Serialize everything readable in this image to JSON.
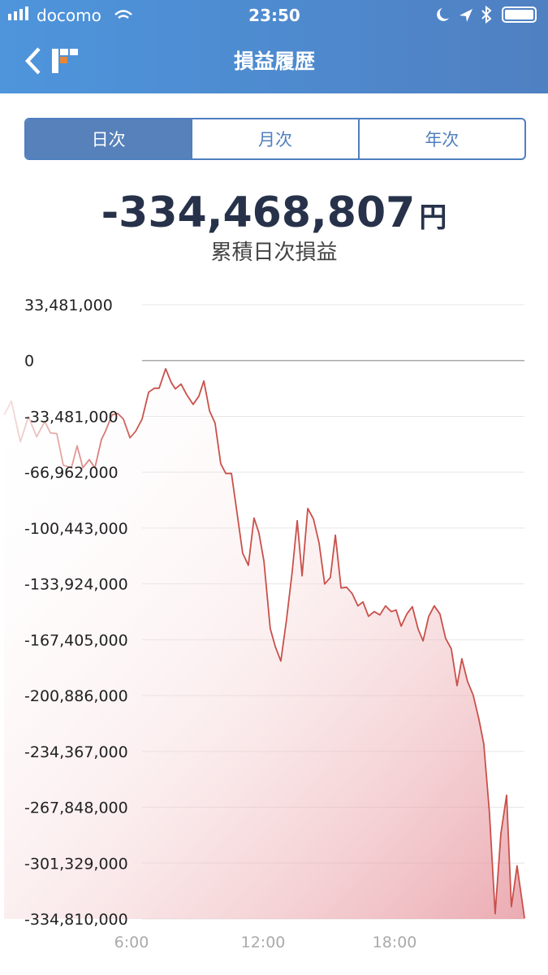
{
  "status_bar": {
    "carrier": "docomo",
    "time": "23:50"
  },
  "nav": {
    "title": "損益履歴"
  },
  "tabs": {
    "items": [
      "日次",
      "月次",
      "年次"
    ],
    "selected": 0
  },
  "summary": {
    "value": "-334,468,807",
    "unit": "円",
    "label": "累積日次損益"
  },
  "chart_data": {
    "type": "line",
    "x": [
      0.19,
      0.52,
      0.93,
      1.3,
      1.67,
      2.04,
      2.3,
      2.59,
      2.89,
      3.26,
      3.52,
      3.78,
      4.07,
      4.33,
      4.63,
      4.81,
      5.11,
      5.37,
      5.63,
      5.93,
      6.19,
      6.48,
      6.78,
      7.04,
      7.26,
      7.56,
      7.81,
      8,
      8.26,
      8.52,
      8.81,
      9.07,
      9.3,
      9.56,
      9.81,
      10.07,
      10.3,
      10.56,
      10.81,
      11.07,
      11.33,
      11.59,
      11.81,
      12.04,
      12.33,
      12.56,
      12.81,
      13.07,
      13.33,
      13.56,
      13.78,
      14.04,
      14.3,
      14.56,
      14.81,
      15.07,
      15.3,
      15.56,
      15.81,
      16.07,
      16.33,
      16.56,
      16.81,
      17.07,
      17.33,
      17.59,
      17.85,
      18.07,
      18.3,
      18.56,
      18.81,
      19.07,
      19.3,
      19.56,
      19.81,
      20.07,
      20.33,
      20.59,
      20.85,
      21.07,
      21.33,
      21.59,
      21.85,
      22.07,
      22.33,
      22.59,
      22.85,
      23.11,
      23.33,
      23.59,
      23.93
    ],
    "series": [
      {
        "color": "#c9504a",
        "values": [
          -32600000,
          -24400000,
          -48700000,
          -33600000,
          -45800000,
          -36500000,
          -43400000,
          -43800000,
          -62800000,
          -64300000,
          -51200000,
          -64300000,
          -59400000,
          -64300000,
          -47300000,
          -42400000,
          -32600000,
          -31700000,
          -35100000,
          -46300000,
          -42400000,
          -35100000,
          -19000000,
          -16600000,
          -16600000,
          -4900000,
          -13200000,
          -17000000,
          -14100000,
          -20500000,
          -26300000,
          -21400000,
          -12200000,
          -30200000,
          -37500000,
          -61900000,
          -67700000,
          -67700000,
          -91100000,
          -115500000,
          -122800000,
          -94500000,
          -103300000,
          -120300000,
          -160800000,
          -171500000,
          -180200000,
          -155400000,
          -126700000,
          -96000000,
          -129100000,
          -88700000,
          -95000000,
          -109600000,
          -134000000,
          -130100000,
          -104700000,
          -136400000,
          -135900000,
          -139800000,
          -147100000,
          -144700000,
          -153400000,
          -150500000,
          -152500000,
          -147100000,
          -150500000,
          -149600000,
          -159300000,
          -152000000,
          -147600000,
          -160800000,
          -168100000,
          -153400000,
          -147100000,
          -152000000,
          -166600000,
          -172900000,
          -194900000,
          -178800000,
          -192400000,
          -200700000,
          -215300000,
          -229900000,
          -271300000,
          -331700000,
          -283500000,
          -260600000,
          -327400000,
          -303000000,
          -334468807
        ]
      }
    ],
    "xlim": [
      0,
      24
    ],
    "xticks": [
      {
        "value": 6,
        "label": "6:00"
      },
      {
        "value": 12,
        "label": "12:00"
      },
      {
        "value": 18,
        "label": "18:00"
      }
    ],
    "ylim": [
      -334810000,
      33481000
    ],
    "yticks": [
      {
        "value": 33481000,
        "label": "33,481,000"
      },
      0,
      {
        "value": -33481000,
        "label": "-33,481,000"
      },
      {
        "value": -66962000,
        "label": "-66,962,000"
      },
      {
        "value": -100443000,
        "label": "-100,443,000"
      },
      {
        "value": -133924000,
        "label": "-133,924,000"
      },
      {
        "value": -167405000,
        "label": "-167,405,000"
      },
      {
        "value": -200886000,
        "label": "-200,886,000"
      },
      {
        "value": -234367000,
        "label": "-234,367,000"
      },
      {
        "value": -267848000,
        "label": "-267,848,000"
      },
      {
        "value": -301329000,
        "label": "-301,329,000"
      },
      {
        "value": -334810000,
        "label": "-334,810,000"
      }
    ],
    "grid": true
  }
}
